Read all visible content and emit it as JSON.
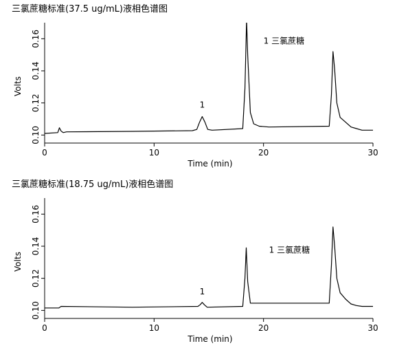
{
  "chart_data": [
    {
      "type": "line",
      "title": "三氯蔗糖标准(37.5 ug/mL)液相色谱图",
      "xlabel": "Time (min)",
      "ylabel": "Volts",
      "xlim": [
        0,
        30
      ],
      "ylim": [
        0.095,
        0.17
      ],
      "xticks": [
        0,
        10,
        20,
        30
      ],
      "yticks": [
        0.1,
        0.12,
        0.14,
        0.16
      ],
      "ytick_labels": [
        "0.10",
        "0.12",
        "0.14",
        "0.16"
      ],
      "grid": false,
      "series": [
        {
          "x": [
            0.0,
            1.2,
            1.35,
            1.5,
            1.7,
            2.0,
            8.0,
            13.5,
            13.9,
            14.15,
            14.4,
            14.65,
            14.9,
            15.3,
            18.1,
            18.3,
            18.45,
            18.55,
            18.8,
            19.1,
            19.6,
            20.5,
            26.0,
            26.2,
            26.35,
            26.5,
            26.7,
            27.0,
            27.5,
            28.0,
            28.5,
            29.0,
            30.0
          ],
          "y": [
            0.101,
            0.1015,
            0.1045,
            0.1025,
            0.1015,
            0.102,
            0.1023,
            0.1027,
            0.1035,
            0.108,
            0.1115,
            0.108,
            0.1035,
            0.103,
            0.104,
            0.129,
            0.172,
            0.15,
            0.114,
            0.107,
            0.1055,
            0.105,
            0.1055,
            0.125,
            0.152,
            0.141,
            0.12,
            0.111,
            0.108,
            0.105,
            0.104,
            0.103,
            0.103
          ]
        }
      ],
      "annotations": [
        {
          "text": "1",
          "x": 14.4,
          "y": 0.117
        },
        {
          "text": "1 三氯蔗糖",
          "x": 20.0,
          "y": 0.157
        }
      ]
    },
    {
      "type": "line",
      "title": "三氯蔗糖标准(18.75 ug/mL)液相色谱图",
      "xlabel": "Time (min)",
      "ylabel": "Volts",
      "xlim": [
        0,
        30
      ],
      "ylim": [
        0.095,
        0.17
      ],
      "xticks": [
        0,
        10,
        20,
        30
      ],
      "yticks": [
        0.1,
        0.12,
        0.14,
        0.16
      ],
      "ytick_labels": [
        "0.10",
        "0.12",
        "0.14",
        "0.16"
      ],
      "grid": false,
      "series": [
        {
          "x": [
            0.0,
            1.3,
            1.5,
            8.0,
            14.0,
            14.2,
            14.4,
            14.6,
            14.85,
            18.1,
            18.3,
            18.42,
            18.55,
            18.8,
            20.0,
            26.0,
            26.2,
            26.35,
            26.5,
            26.7,
            27.0,
            27.5,
            28.0,
            28.5,
            29.0,
            30.0
          ],
          "y": [
            0.1015,
            0.1015,
            0.1025,
            0.102,
            0.1025,
            0.1035,
            0.105,
            0.1035,
            0.102,
            0.1025,
            0.12,
            0.139,
            0.118,
            0.1045,
            0.1045,
            0.1045,
            0.128,
            0.152,
            0.14,
            0.12,
            0.111,
            0.107,
            0.104,
            0.103,
            0.1025,
            0.1025
          ]
        }
      ],
      "annotations": [
        {
          "text": "1",
          "x": 14.4,
          "y": 0.11
        },
        {
          "text": "1 三氯蔗糖",
          "x": 20.5,
          "y": 0.136
        }
      ]
    }
  ]
}
